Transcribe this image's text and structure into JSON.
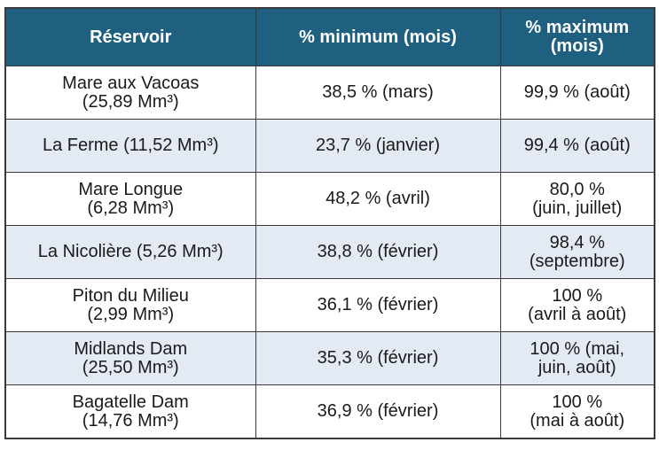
{
  "table": {
    "header": [
      [
        "Réservoir"
      ],
      [
        "% minimum (mois)"
      ],
      [
        "% maximum",
        "(mois)"
      ]
    ],
    "rows": [
      [
        [
          "Mare aux Vacoas",
          "(25,89 Mm³)"
        ],
        [
          "38,5 % (mars)"
        ],
        [
          "99,9 % (août)"
        ]
      ],
      [
        [
          "La Ferme (11,52 Mm³)"
        ],
        [
          "23,7 % (janvier)"
        ],
        [
          "99,4 % (août)"
        ]
      ],
      [
        [
          "Mare Longue",
          "(6,28 Mm³)"
        ],
        [
          "48,2 % (avril)"
        ],
        [
          "80,0 %",
          "(juin, juillet)"
        ]
      ],
      [
        [
          "La Nicolière (5,26 Mm³)"
        ],
        [
          "38,8 % (février)"
        ],
        [
          "98,4 %",
          "(septembre)"
        ]
      ],
      [
        [
          "Piton du Milieu",
          "(2,99 Mm³)"
        ],
        [
          "36,1 % (février)"
        ],
        [
          "100 %",
          "(avril à août)"
        ]
      ],
      [
        [
          "Midlands Dam",
          "(25,50 Mm³)"
        ],
        [
          "35,3 % (février)"
        ],
        [
          "100 % (mai,",
          "juin, août)"
        ]
      ],
      [
        [
          "Bagatelle Dam",
          "(14,76 Mm³)"
        ],
        [
          "36,9 % (février)"
        ],
        [
          "100 %",
          "(mai à août)"
        ]
      ]
    ]
  }
}
